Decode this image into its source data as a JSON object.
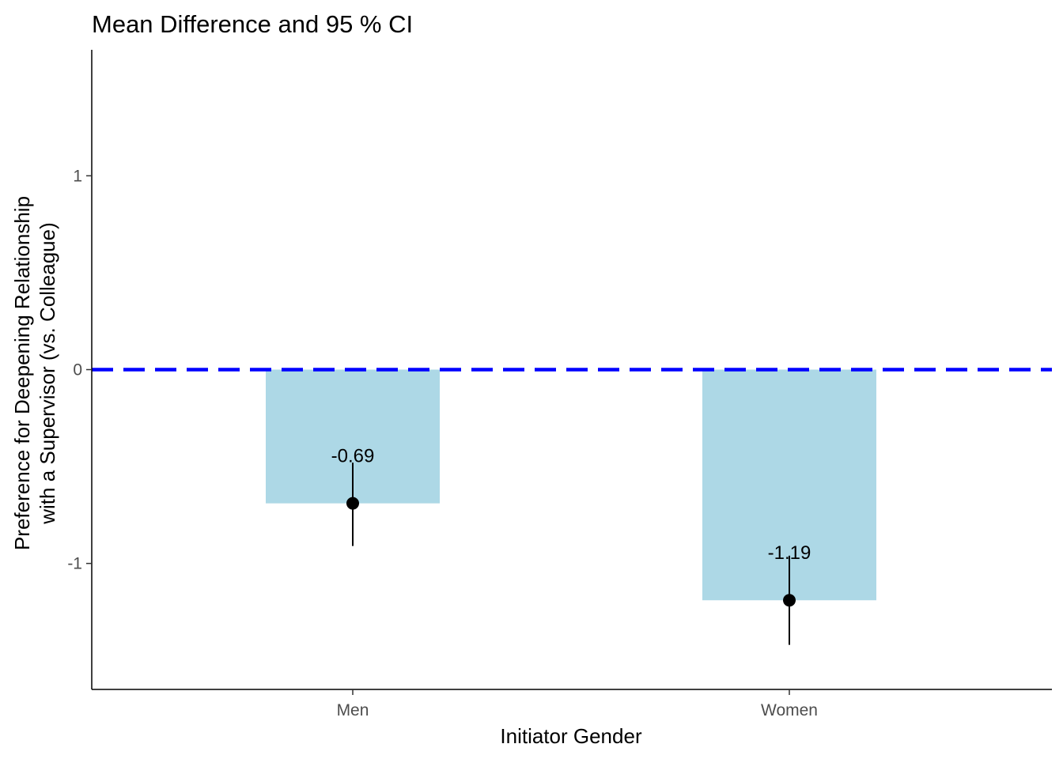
{
  "chart_data": {
    "type": "bar",
    "title": "Mean Difference and 95 % CI",
    "xlabel": "Initiator Gender",
    "ylabel_lines": [
      "Preference for Deepening Relationship",
      "with a Supervisor (vs. Colleague)"
    ],
    "categories": [
      "Men",
      "Women"
    ],
    "values": [
      -0.69,
      -1.19
    ],
    "value_labels": [
      "-0.69",
      "-1.19"
    ],
    "ci_lower": [
      -0.91,
      -1.42
    ],
    "ci_upper": [
      -0.48,
      -0.96
    ],
    "y_ticks": [
      -1,
      0,
      1
    ],
    "y_tick_labels": [
      "-1",
      "0",
      "1"
    ],
    "ylim": [
      -1.65,
      1.65
    ],
    "reference_line": {
      "y": 0,
      "style": "dashed"
    },
    "grid": false,
    "legend": "none",
    "colors": {
      "bar": "#add8e6",
      "reference_line": "#0000ff",
      "point": "#000000",
      "errorbar": "#000000",
      "axis": "#000000"
    }
  }
}
